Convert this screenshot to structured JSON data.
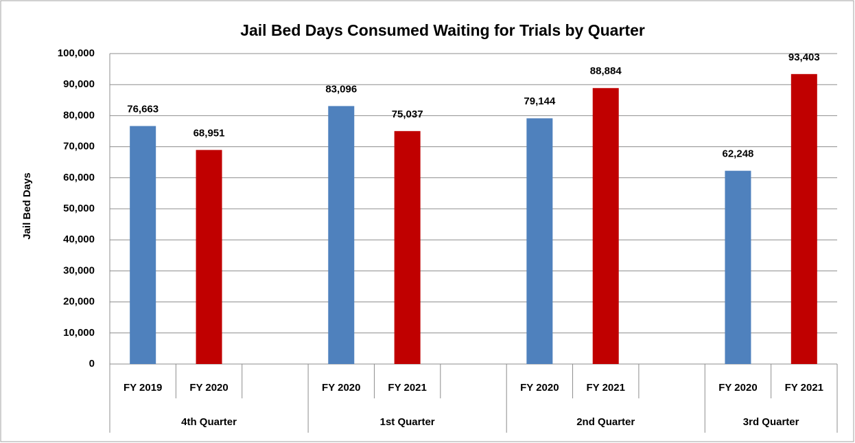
{
  "chart_data": {
    "type": "bar",
    "title": "Jail Bed Days Consumed Waiting for Trials by Quarter",
    "y_label": "Jail Bed Days",
    "categories": [
      "FY 2019",
      "FY 2020",
      null,
      "FY 2020",
      "FY 2021",
      null,
      "FY 2020",
      "FY 2021",
      null,
      "FY 2020",
      "FY 2021"
    ],
    "values": [
      76663,
      68951,
      null,
      83096,
      75037,
      null,
      79144,
      88884,
      null,
      62248,
      93403
    ],
    "value_labels": [
      "76,663",
      "68,951",
      null,
      "83,096",
      "75,037",
      null,
      "79,144",
      "88,884",
      null,
      "62,248",
      "93,403"
    ],
    "groups": [
      "4th Quarter",
      "1st Quarter",
      "2nd Quarter",
      "3rd Quarter"
    ],
    "colors": [
      "#4f81bd",
      "#c00000"
    ],
    "ylim": [
      0,
      100000
    ],
    "yticks": [
      0,
      {
        "value": 10000,
        "label": "10,000"
      },
      {
        "value": 20000,
        "label": "20,000"
      },
      {
        "value": 30000,
        "label": "30,000"
      },
      {
        "value": 40000,
        "label": "40,000"
      },
      {
        "value": 50000,
        "label": "50,000"
      },
      {
        "value": 60000,
        "label": "60,000"
      },
      {
        "value": 70000,
        "label": "70,000"
      },
      {
        "value": 80000,
        "label": "80,000"
      },
      {
        "value": 90000,
        "label": "90,000"
      },
      {
        "value": 100000,
        "label": "100,000"
      }
    ],
    "grid": true
  }
}
